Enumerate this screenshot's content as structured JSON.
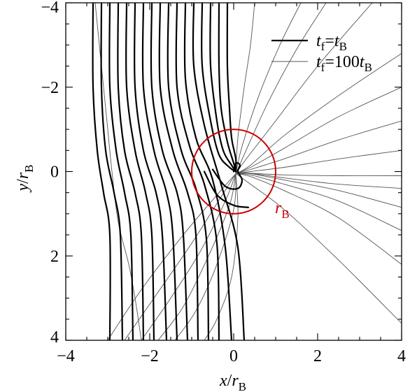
{
  "chart_data": {
    "type": "line",
    "title": "",
    "xlabel": {
      "var": "x",
      "slash": "/",
      "r": "r",
      "sub": "B"
    },
    "ylabel": {
      "var": "y",
      "slash": "/",
      "r": "r",
      "sub": "B"
    },
    "xlim": [
      -4,
      4
    ],
    "ylim": [
      -4,
      4
    ],
    "y_axis_inverted": true,
    "x_ticks": [
      -4,
      -2,
      0,
      2,
      4
    ],
    "y_ticks": [
      -4,
      -2,
      0,
      2,
      4
    ],
    "x_tick_labels": [
      "−4",
      "−2",
      "0",
      "2",
      "4"
    ],
    "y_tick_labels": [
      "−4",
      "−2",
      "0",
      "2",
      "4"
    ],
    "legend": {
      "placement": "top-right",
      "entries": [
        {
          "key": "thick",
          "var": "t",
          "sub1": "f",
          "eq": "=",
          "var2": "t",
          "sub2": "B",
          "pre2": ""
        },
        {
          "key": "thin",
          "var": "t",
          "sub1": "f",
          "eq": "=",
          "var2": "t",
          "sub2": "B",
          "pre2": "100"
        }
      ]
    },
    "circle": {
      "center": [
        0,
        0
      ],
      "radius": 1,
      "color": "#cc0000"
    },
    "annotation": {
      "var": "r",
      "sub": "B",
      "position": [
        0.85,
        0.85
      ]
    },
    "colors": {
      "thick": "#000000",
      "thin": "#555555",
      "circle": "#cc0000"
    },
    "series": [
      {
        "key": "thin",
        "lines": [
          [
            [
              -3.0,
              4.0
            ],
            [
              -2.2,
              2.8
            ],
            [
              -1.2,
              1.5
            ],
            [
              -0.35,
              0.5
            ],
            [
              0.05,
              0.05
            ]
          ],
          [
            [
              -2.6,
              4.0
            ],
            [
              -1.9,
              3.0
            ],
            [
              -1.0,
              1.7
            ],
            [
              -0.3,
              0.6
            ],
            [
              0.05,
              0.05
            ]
          ],
          [
            [
              -2.2,
              4.0
            ],
            [
              -1.5,
              3.0
            ],
            [
              -0.8,
              1.9
            ],
            [
              -0.2,
              0.7
            ],
            [
              0.05,
              0.05
            ]
          ],
          [
            [
              -1.8,
              4.0
            ],
            [
              -1.2,
              3.2
            ],
            [
              -0.6,
              2.0
            ],
            [
              -0.1,
              0.8
            ],
            [
              0.05,
              0.05
            ]
          ],
          [
            [
              -1.4,
              4.0
            ],
            [
              -0.9,
              3.3
            ],
            [
              -0.4,
              2.2
            ],
            [
              0.0,
              0.9
            ],
            [
              0.05,
              0.05
            ]
          ],
          [
            [
              -0.7,
              4.0
            ],
            [
              -0.4,
              3.5
            ],
            [
              -0.05,
              2.5
            ],
            [
              0.1,
              1.1
            ],
            [
              0.05,
              0.05
            ]
          ],
          [
            [
              4.0,
              3.6
            ],
            [
              2.5,
              2.1
            ],
            [
              1.2,
              0.9
            ],
            [
              0.4,
              0.3
            ],
            [
              0.05,
              0.05
            ]
          ],
          [
            [
              4.0,
              2.2
            ],
            [
              2.5,
              1.1
            ],
            [
              1.2,
              0.45
            ],
            [
              0.4,
              0.12
            ],
            [
              0.05,
              0.05
            ]
          ],
          [
            [
              4.0,
              1.4
            ],
            [
              2.5,
              0.7
            ],
            [
              1.2,
              0.3
            ],
            [
              0.4,
              0.08
            ],
            [
              0.05,
              0.05
            ]
          ],
          [
            [
              4.0,
              0.85
            ],
            [
              2.5,
              0.45
            ],
            [
              1.2,
              0.2
            ],
            [
              0.4,
              0.05
            ],
            [
              0.05,
              0.05
            ]
          ],
          [
            [
              4.0,
              0.4
            ],
            [
              2.5,
              0.3
            ],
            [
              1.2,
              0.15
            ],
            [
              0.4,
              0.04
            ],
            [
              0.05,
              0.05
            ]
          ],
          [
            [
              4.0,
              0.1
            ],
            [
              2.5,
              0.1
            ],
            [
              1.2,
              0.08
            ],
            [
              0.4,
              0.04
            ],
            [
              0.05,
              0.05
            ]
          ],
          [
            [
              4.0,
              -0.5
            ],
            [
              2.5,
              -0.3
            ],
            [
              1.2,
              -0.1
            ],
            [
              0.4,
              0.0
            ],
            [
              0.05,
              0.05
            ]
          ],
          [
            [
              4.0,
              -1.2
            ],
            [
              2.5,
              -0.75
            ],
            [
              1.2,
              -0.3
            ],
            [
              0.4,
              -0.05
            ],
            [
              0.05,
              0.05
            ]
          ],
          [
            [
              4.0,
              -2.0
            ],
            [
              2.5,
              -1.3
            ],
            [
              1.2,
              -0.55
            ],
            [
              0.4,
              -0.1
            ],
            [
              0.05,
              0.05
            ]
          ],
          [
            [
              4.0,
              -2.8
            ],
            [
              2.5,
              -1.8
            ],
            [
              1.2,
              -0.85
            ],
            [
              0.4,
              -0.15
            ],
            [
              0.05,
              0.05
            ]
          ],
          [
            [
              3.3,
              -4.0
            ],
            [
              2.0,
              -2.5
            ],
            [
              1.0,
              -1.2
            ],
            [
              0.3,
              -0.3
            ],
            [
              0.05,
              0.05
            ]
          ],
          [
            [
              2.2,
              -4.0
            ],
            [
              1.5,
              -2.9
            ],
            [
              0.8,
              -1.6
            ],
            [
              0.25,
              -0.4
            ],
            [
              0.05,
              0.05
            ]
          ],
          [
            [
              1.6,
              -4.0
            ],
            [
              1.1,
              -3.0
            ],
            [
              0.6,
              -1.8
            ],
            [
              0.2,
              -0.6
            ],
            [
              0.05,
              0.05
            ]
          ],
          [
            [
              0.5,
              -4.0
            ],
            [
              0.4,
              -3.0
            ],
            [
              0.25,
              -2.0
            ],
            [
              0.1,
              -0.8
            ],
            [
              0.05,
              0.05
            ]
          ],
          [
            [
              -3.3,
              -4.0
            ],
            [
              -3.2,
              -3.0
            ],
            [
              -3.1,
              -2.0
            ],
            [
              -3.0,
              -1.0
            ],
            [
              -2.9,
              0.0
            ],
            [
              -2.75,
              1.2
            ],
            [
              -2.5,
              2.2
            ],
            [
              -2.35,
              3.0
            ],
            [
              -2.2,
              4.0
            ]
          ]
        ]
      },
      {
        "key": "thick",
        "lines": [
          [
            [
              -3.35,
              -4.0
            ],
            [
              -3.35,
              -2.0
            ],
            [
              -3.25,
              -0.5
            ],
            [
              -3.1,
              0.5
            ],
            [
              -2.95,
              1.5
            ],
            [
              -2.95,
              4.0
            ]
          ],
          [
            [
              -3.15,
              -4.0
            ],
            [
              -3.15,
              -2.0
            ],
            [
              -3.05,
              -0.5
            ],
            [
              -2.85,
              0.5
            ],
            [
              -2.7,
              1.5
            ],
            [
              -2.65,
              4.0
            ]
          ],
          [
            [
              -2.95,
              -4.0
            ],
            [
              -2.95,
              -2.0
            ],
            [
              -2.8,
              -0.5
            ],
            [
              -2.6,
              0.5
            ],
            [
              -2.45,
              1.5
            ],
            [
              -2.4,
              4.0
            ]
          ],
          [
            [
              -2.75,
              -4.0
            ],
            [
              -2.75,
              -2.0
            ],
            [
              -2.6,
              -0.5
            ],
            [
              -2.35,
              0.5
            ],
            [
              -2.2,
              1.5
            ],
            [
              -2.15,
              4.0
            ]
          ],
          [
            [
              -2.55,
              -4.0
            ],
            [
              -2.55,
              -2.0
            ],
            [
              -2.35,
              -0.5
            ],
            [
              -2.1,
              0.5
            ],
            [
              -1.95,
              1.5
            ],
            [
              -1.9,
              4.0
            ]
          ],
          [
            [
              -2.35,
              -4.0
            ],
            [
              -2.35,
              -2.0
            ],
            [
              -2.15,
              -0.5
            ],
            [
              -1.85,
              0.5
            ],
            [
              -1.7,
              1.5
            ],
            [
              -1.6,
              4.0
            ]
          ],
          [
            [
              -2.15,
              -4.0
            ],
            [
              -2.15,
              -2.0
            ],
            [
              -1.9,
              -0.5
            ],
            [
              -1.6,
              0.5
            ],
            [
              -1.45,
              1.5
            ],
            [
              -1.35,
              4.0
            ]
          ],
          [
            [
              -1.95,
              -4.0
            ],
            [
              -1.95,
              -2.0
            ],
            [
              -1.7,
              -0.5
            ],
            [
              -1.35,
              0.5
            ],
            [
              -1.2,
              1.5
            ],
            [
              -1.1,
              4.0
            ]
          ],
          [
            [
              -1.75,
              -4.0
            ],
            [
              -1.75,
              -2.0
            ],
            [
              -1.45,
              -0.5
            ],
            [
              -1.1,
              0.5
            ],
            [
              -0.9,
              1.5
            ],
            [
              -0.85,
              4.0
            ]
          ],
          [
            [
              -1.55,
              -4.0
            ],
            [
              -1.55,
              -2.0
            ],
            [
              -1.25,
              -0.5
            ],
            [
              -0.9,
              0.4
            ],
            [
              -0.65,
              1.6
            ],
            [
              -0.6,
              4.0
            ]
          ],
          [
            [
              -1.35,
              -4.0
            ],
            [
              -1.35,
              -2.0
            ],
            [
              -1.05,
              -0.6
            ],
            [
              -0.7,
              0.3
            ],
            [
              -0.4,
              1.7
            ],
            [
              -0.35,
              4.0
            ]
          ],
          [
            [
              -1.15,
              -4.0
            ],
            [
              -1.15,
              -2.2
            ],
            [
              -0.9,
              -0.8
            ],
            [
              -0.5,
              0.2
            ],
            [
              -0.2,
              1.8
            ],
            [
              -0.05,
              4.0
            ]
          ],
          [
            [
              -0.95,
              -4.0
            ],
            [
              -0.95,
              -2.5
            ],
            [
              -0.7,
              -1.1
            ],
            [
              -0.3,
              0.3
            ],
            [
              0.1,
              1.8
            ],
            [
              0.25,
              4.0
            ]
          ],
          [
            [
              -0.75,
              -4.0
            ],
            [
              -0.75,
              -2.5
            ],
            [
              -0.55,
              -1.2
            ],
            [
              -0.35,
              -0.4
            ],
            [
              -0.1,
              -0.1
            ],
            [
              0.05,
              0.0
            ]
          ],
          [
            [
              -0.55,
              -4.0
            ],
            [
              -0.55,
              -2.5
            ],
            [
              -0.4,
              -1.2
            ],
            [
              -0.25,
              -0.5
            ],
            [
              -0.05,
              -0.15
            ],
            [
              0.05,
              0.0
            ]
          ],
          [
            [
              -0.35,
              -4.0
            ],
            [
              -0.35,
              -2.5
            ],
            [
              -0.3,
              -1.5
            ],
            [
              -0.15,
              -0.7
            ],
            [
              0.0,
              -0.2
            ],
            [
              0.05,
              0.0
            ]
          ],
          [
            [
              -0.15,
              -4.0
            ],
            [
              -0.15,
              -2.5
            ],
            [
              -0.1,
              -1.5
            ],
            [
              -0.05,
              -0.8
            ],
            [
              0.05,
              -0.3
            ],
            [
              0.05,
              0.0
            ]
          ],
          [
            [
              -0.7,
              0.0
            ],
            [
              -0.4,
              0.55
            ],
            [
              0.0,
              0.8
            ],
            [
              0.35,
              0.85
            ]
          ],
          [
            [
              -0.5,
              -0.05
            ],
            [
              -0.2,
              0.35
            ],
            [
              0.1,
              0.4
            ],
            [
              0.2,
              0.2
            ],
            [
              0.1,
              0.0
            ],
            [
              0.15,
              -0.15
            ],
            [
              0.05,
              -0.2
            ],
            [
              0.0,
              0.0
            ]
          ]
        ]
      }
    ]
  }
}
